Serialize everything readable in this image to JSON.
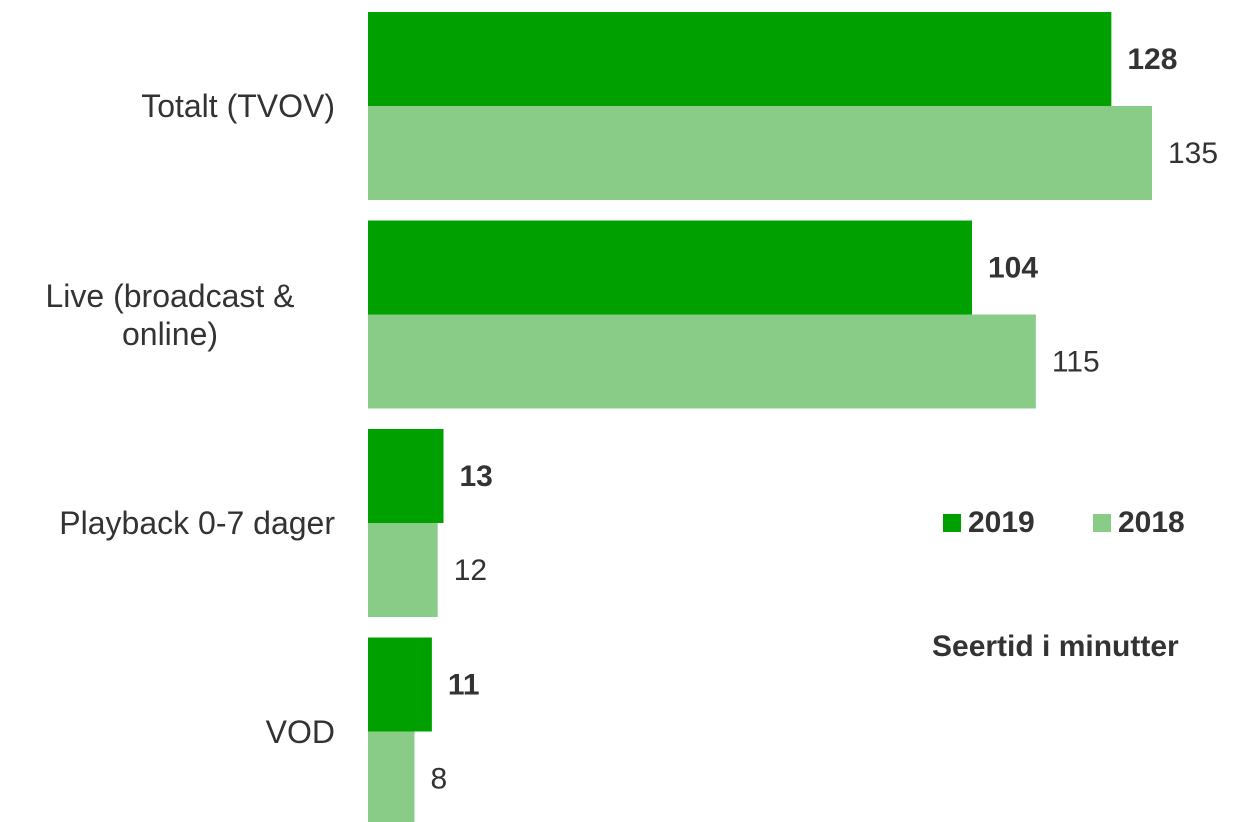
{
  "chart_data": {
    "type": "hbar",
    "categories": [
      "Totalt (TVOV)",
      "Live (broadcast & online)",
      "Playback 0-7 dager",
      "VOD"
    ],
    "series": [
      {
        "name": "2019",
        "color": "#00a000",
        "values": [
          128,
          104,
          13,
          11
        ]
      },
      {
        "name": "2018",
        "color": "#88cc88",
        "values": [
          135,
          115,
          12,
          8
        ]
      }
    ],
    "annotation": "Seertid i minutter"
  }
}
